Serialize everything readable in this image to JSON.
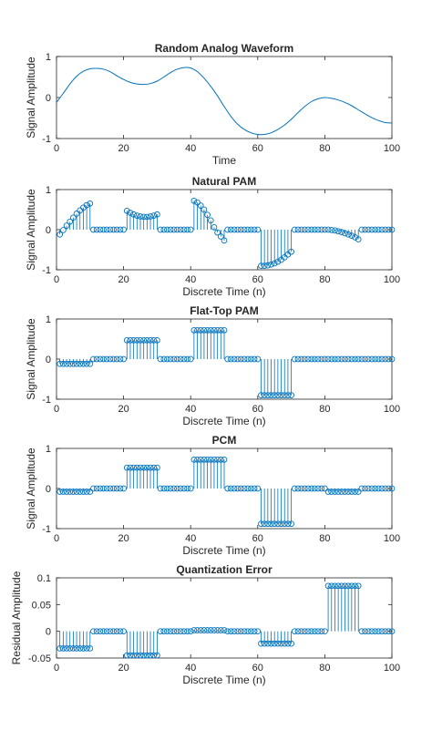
{
  "chart_data": [
    {
      "type": "line",
      "title": "Random Analog Waveform",
      "xlabel": "Time",
      "ylabel": "Signal Amplitude",
      "xlim": [
        0,
        100
      ],
      "ylim": [
        -1,
        1
      ],
      "xticks": [
        "0",
        "20",
        "40",
        "60",
        "80",
        "100"
      ],
      "yticks": [
        "-1",
        "0",
        "1"
      ],
      "grid": false,
      "color": "#0072BD",
      "series": [
        {
          "x": [
            0,
            2,
            4,
            6,
            8,
            10,
            12,
            14,
            16,
            18,
            20,
            22,
            24,
            26,
            28,
            30,
            32,
            34,
            36,
            38,
            40,
            42,
            44,
            46,
            48,
            50,
            52,
            54,
            56,
            58,
            60,
            62,
            64,
            66,
            68,
            70,
            72,
            74,
            76,
            78,
            80,
            82,
            84,
            86,
            88,
            90,
            92,
            94,
            96,
            98,
            100
          ],
          "values": [
            -0.12,
            0.1,
            0.33,
            0.52,
            0.64,
            0.7,
            0.71,
            0.69,
            0.63,
            0.53,
            0.44,
            0.37,
            0.33,
            0.32,
            0.34,
            0.4,
            0.5,
            0.61,
            0.69,
            0.73,
            0.72,
            0.63,
            0.47,
            0.27,
            0.04,
            -0.22,
            -0.46,
            -0.65,
            -0.78,
            -0.86,
            -0.9,
            -0.9,
            -0.86,
            -0.78,
            -0.67,
            -0.53,
            -0.37,
            -0.22,
            -0.1,
            -0.03,
            0.0,
            -0.02,
            -0.06,
            -0.12,
            -0.2,
            -0.3,
            -0.4,
            -0.49,
            -0.56,
            -0.61,
            -0.62
          ]
        }
      ]
    },
    {
      "type": "stem",
      "title": "Natural PAM",
      "xlabel": "Discrete Time (n)",
      "ylabel": "Signal Amplitude",
      "xlim": [
        0,
        100
      ],
      "ylim": [
        -1,
        1
      ],
      "xticks": [
        "0",
        "20",
        "40",
        "60",
        "80",
        "100"
      ],
      "yticks": [
        "-1",
        "0",
        "1"
      ],
      "grid": false,
      "color": "#0072BD",
      "x_start": 1,
      "values": [
        -0.12,
        -0.01,
        0.1,
        0.2,
        0.3,
        0.4,
        0.48,
        0.55,
        0.61,
        0.65,
        0,
        0,
        0,
        0,
        0,
        0,
        0,
        0,
        0,
        0,
        0.47,
        0.42,
        0.38,
        0.35,
        0.33,
        0.32,
        0.32,
        0.33,
        0.35,
        0.38,
        0,
        0,
        0,
        0,
        0,
        0,
        0,
        0,
        0,
        0,
        0.72,
        0.68,
        0.6,
        0.5,
        0.37,
        0.23,
        0.06,
        -0.07,
        -0.17,
        -0.27,
        0,
        0,
        0,
        0,
        0,
        0,
        0,
        0,
        0,
        0,
        -0.9,
        -0.9,
        -0.89,
        -0.87,
        -0.84,
        -0.8,
        -0.75,
        -0.69,
        -0.62,
        -0.55,
        0,
        0,
        0,
        0,
        0,
        0,
        0,
        0,
        0,
        0,
        0.0,
        -0.01,
        -0.02,
        -0.04,
        -0.06,
        -0.09,
        -0.12,
        -0.15,
        -0.19,
        -0.24,
        0,
        0,
        0,
        0,
        0,
        0,
        0,
        0,
        0,
        0
      ]
    },
    {
      "type": "stem",
      "title": "Flat-Top PAM",
      "xlabel": "Discrete Time (n)",
      "ylabel": "Signal Amplitude",
      "xlim": [
        0,
        100
      ],
      "ylim": [
        -1,
        1
      ],
      "xticks": [
        "0",
        "20",
        "40",
        "60",
        "80",
        "100"
      ],
      "yticks": [
        "-1",
        "0",
        "1"
      ],
      "grid": false,
      "color": "#0072BD",
      "x_start": 1,
      "values": [
        -0.12,
        -0.12,
        -0.12,
        -0.12,
        -0.12,
        -0.12,
        -0.12,
        -0.12,
        -0.12,
        -0.12,
        0,
        0,
        0,
        0,
        0,
        0,
        0,
        0,
        0,
        0,
        0.47,
        0.47,
        0.47,
        0.47,
        0.47,
        0.47,
        0.47,
        0.47,
        0.47,
        0.47,
        0,
        0,
        0,
        0,
        0,
        0,
        0,
        0,
        0,
        0,
        0.72,
        0.72,
        0.72,
        0.72,
        0.72,
        0.72,
        0.72,
        0.72,
        0.72,
        0.72,
        0,
        0,
        0,
        0,
        0,
        0,
        0,
        0,
        0,
        0,
        -0.9,
        -0.9,
        -0.9,
        -0.9,
        -0.9,
        -0.9,
        -0.9,
        -0.9,
        -0.9,
        -0.9,
        0,
        0,
        0,
        0,
        0,
        0,
        0,
        0,
        0,
        0,
        0,
        0,
        0,
        0,
        0,
        0,
        0,
        0,
        0,
        0,
        0,
        0,
        0,
        0,
        0,
        0,
        0,
        0,
        0,
        0
      ]
    },
    {
      "type": "stem",
      "title": "PCM",
      "xlabel": "Discrete Time (n)",
      "ylabel": "Signal Amplitude",
      "xlim": [
        0,
        100
      ],
      "ylim": [
        -1,
        1
      ],
      "xticks": [
        "0",
        "20",
        "40",
        "60",
        "80",
        "100"
      ],
      "yticks": [
        "-1",
        "0",
        "1"
      ],
      "grid": false,
      "color": "#0072BD",
      "x_start": 1,
      "values": [
        -0.08,
        -0.08,
        -0.08,
        -0.08,
        -0.08,
        -0.08,
        -0.08,
        -0.08,
        -0.08,
        -0.08,
        0,
        0,
        0,
        0,
        0,
        0,
        0,
        0,
        0,
        0,
        0.52,
        0.52,
        0.52,
        0.52,
        0.52,
        0.52,
        0.52,
        0.52,
        0.52,
        0.52,
        0,
        0,
        0,
        0,
        0,
        0,
        0,
        0,
        0,
        0,
        0.72,
        0.72,
        0.72,
        0.72,
        0.72,
        0.72,
        0.72,
        0.72,
        0.72,
        0.72,
        0,
        0,
        0,
        0,
        0,
        0,
        0,
        0,
        0,
        0,
        -0.88,
        -0.88,
        -0.88,
        -0.88,
        -0.88,
        -0.88,
        -0.88,
        -0.88,
        -0.88,
        -0.88,
        0,
        0,
        0,
        0,
        0,
        0,
        0,
        0,
        0,
        0,
        -0.08,
        -0.08,
        -0.08,
        -0.08,
        -0.08,
        -0.08,
        -0.08,
        -0.08,
        -0.08,
        -0.08,
        0,
        0,
        0,
        0,
        0,
        0,
        0,
        0,
        0,
        0
      ]
    },
    {
      "type": "stem",
      "title": "Quantization Error",
      "xlabel": "Discrete Time (n)",
      "ylabel": "Residual Amplitude",
      "xlim": [
        0,
        100
      ],
      "ylim": [
        -0.05,
        0.1
      ],
      "xticks": [
        "0",
        "20",
        "40",
        "60",
        "80",
        "100"
      ],
      "yticks": [
        "-0.05",
        "0",
        "0.05",
        "0.1"
      ],
      "grid": false,
      "color": "#0072BD",
      "x_start": 1,
      "values": [
        -0.032,
        -0.032,
        -0.032,
        -0.032,
        -0.032,
        -0.032,
        -0.032,
        -0.032,
        -0.032,
        -0.032,
        0,
        0,
        0,
        0,
        0,
        0,
        0,
        0,
        0,
        0,
        -0.045,
        -0.045,
        -0.045,
        -0.045,
        -0.045,
        -0.045,
        -0.045,
        -0.045,
        -0.045,
        -0.045,
        0,
        0,
        0,
        0,
        0,
        0,
        0,
        0,
        0,
        0,
        0.002,
        0.002,
        0.002,
        0.002,
        0.002,
        0.002,
        0.002,
        0.002,
        0.002,
        0.002,
        0,
        0,
        0,
        0,
        0,
        0,
        0,
        0,
        0,
        0,
        -0.023,
        -0.023,
        -0.023,
        -0.023,
        -0.023,
        -0.023,
        -0.023,
        -0.023,
        -0.023,
        -0.023,
        0,
        0,
        0,
        0,
        0,
        0,
        0,
        0,
        0,
        0,
        0.085,
        0.085,
        0.085,
        0.085,
        0.085,
        0.085,
        0.085,
        0.085,
        0.085,
        0.085,
        0,
        0,
        0,
        0,
        0,
        0,
        0,
        0,
        0,
        0
      ]
    }
  ]
}
